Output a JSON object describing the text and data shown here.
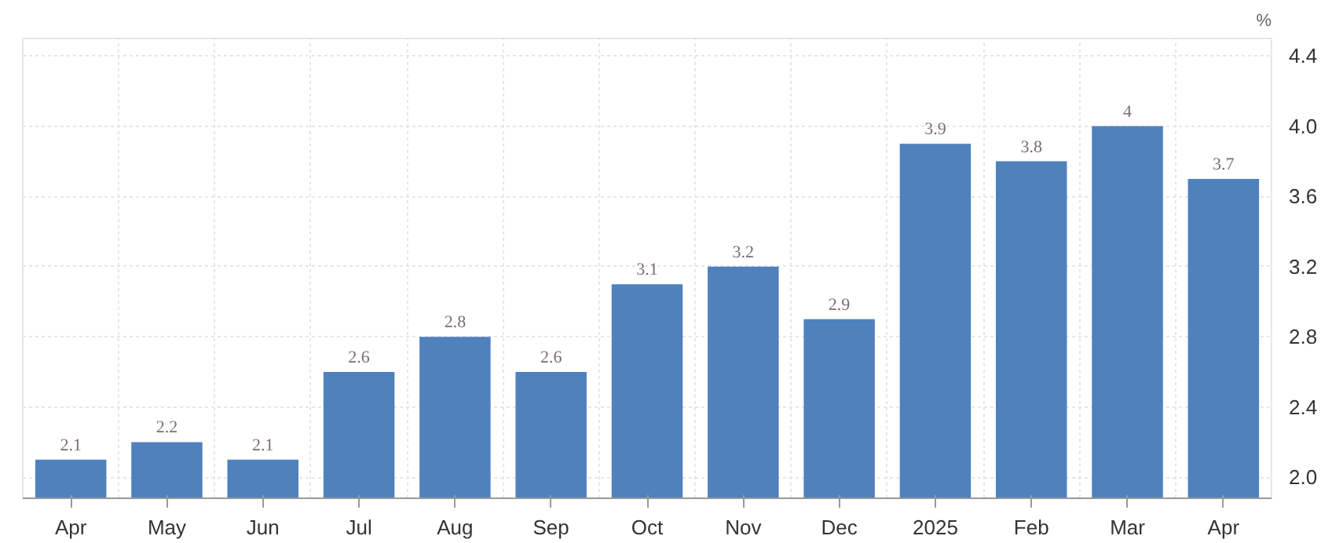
{
  "chart_data": {
    "type": "bar",
    "ylabel": "%",
    "categories": [
      "Apr",
      "May",
      "Jun",
      "Jul",
      "Aug",
      "Sep",
      "Oct",
      "Nov",
      "Dec",
      "2025",
      "Feb",
      "Mar",
      "Apr"
    ],
    "values": [
      2.1,
      2.2,
      2.1,
      2.6,
      2.8,
      2.6,
      3.1,
      3.2,
      2.9,
      3.9,
      3.8,
      4,
      3.7
    ],
    "color": "#4f81bd",
    "data_labels": true,
    "grid": true,
    "ylim": [
      1.88,
      4.5
    ],
    "yticks": [
      {
        "value": 2,
        "label": "2.0"
      },
      {
        "value": 2.4,
        "label": "2.4"
      },
      {
        "value": 2.8,
        "label": "2.8"
      },
      {
        "value": 3.2,
        "label": "3.2"
      },
      {
        "value": 3.6,
        "label": "3.6"
      },
      {
        "value": 4,
        "label": "4.0"
      },
      {
        "value": 4.4,
        "label": "4.4"
      }
    ]
  }
}
